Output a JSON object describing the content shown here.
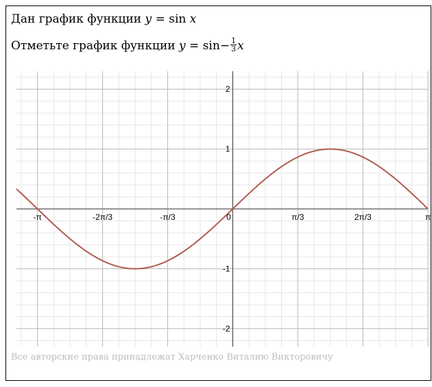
{
  "header": {
    "line1_text": "Дан график функции",
    "line1_formula": {
      "y": "y",
      "eq": "=",
      "fn": "sin",
      "arg": "x"
    },
    "line2_text": "Отметьте график функции",
    "line2_formula": {
      "y": "y",
      "eq": "=",
      "fn": "sin",
      "sign": "−",
      "num": "1",
      "den": "3",
      "arg": "x"
    }
  },
  "footer": {
    "copyright": "Все авторские права принадлежат Харченко Виталию Викторовичу"
  },
  "chart_data": {
    "type": "line",
    "function": "sin(x)",
    "x_range": [
      -3.48,
      3.14
    ],
    "y_range": [
      -2.3,
      2.3
    ],
    "x_ticks": [
      {
        "value": -3.14159,
        "label": "-π"
      },
      {
        "value": -2.0944,
        "label": "-2π/3"
      },
      {
        "value": -1.0472,
        "label": "-π/3"
      },
      {
        "value": 0,
        "label": "0"
      },
      {
        "value": 1.0472,
        "label": "π/3"
      },
      {
        "value": 2.0944,
        "label": "2π/3"
      },
      {
        "value": 3.14159,
        "label": "π"
      }
    ],
    "y_ticks": [
      {
        "value": 2,
        "label": "2"
      },
      {
        "value": 1,
        "label": "1"
      },
      {
        "value": -1,
        "label": "-1"
      },
      {
        "value": -2,
        "label": "-2"
      }
    ],
    "grid": true,
    "minor_grid_step_x": 0.2618,
    "minor_grid_step_y": 0.2,
    "curve_color": "#b05a4e",
    "axis_color": "#555555",
    "major_grid_color": "#bbbbbb",
    "minor_grid_color": "#e6e6e6"
  }
}
